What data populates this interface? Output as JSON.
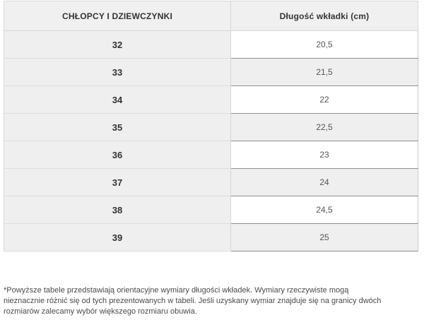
{
  "table": {
    "headers": {
      "sizes": "CHŁOPCY I DZIEWCZYNKI",
      "insole": "Długość wkładki (cm)"
    },
    "rows": [
      {
        "size": "32",
        "insole": "20,5"
      },
      {
        "size": "33",
        "insole": "21,5"
      },
      {
        "size": "34",
        "insole": "22"
      },
      {
        "size": "35",
        "insole": "22,5"
      },
      {
        "size": "36",
        "insole": "23"
      },
      {
        "size": "37",
        "insole": "24"
      },
      {
        "size": "38",
        "insole": "24,5"
      },
      {
        "size": "39",
        "insole": "25"
      }
    ]
  },
  "footer": {
    "lines": [
      "*Powyższe tabele przedstawiają orientacyjne wymiary długości wkładek. Wymiary rzeczywiste mogą",
      "nieznacznie różnić się od tych prezentowanych w tabeli. Jeśli uzyskany wymiar znajduje się na granicy dwóch",
      "rozmiarów zalecamy wybór większego rozmiaru obuwia."
    ]
  },
  "colors": {
    "cell_gray": "#efefef",
    "header_gray": "#f0f0f0",
    "border_light": "#d6d6d6",
    "border_dark": "#8f8f8f",
    "text_dark": "#333333",
    "text_muted": "#555555"
  }
}
